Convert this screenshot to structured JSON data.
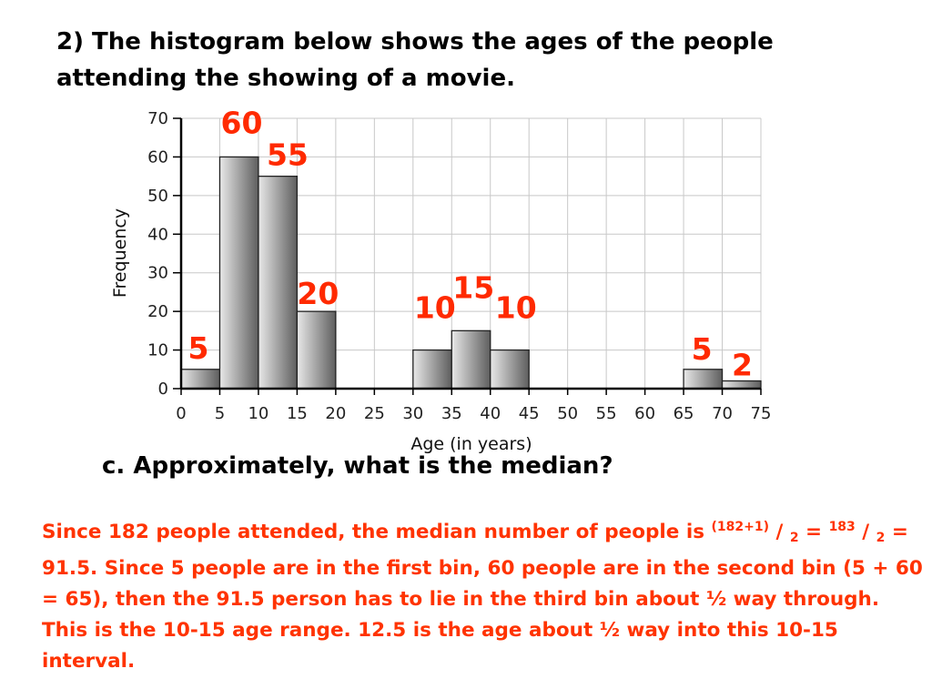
{
  "question": "2)  The histogram below shows the ages of the people attending the showing of a movie.",
  "part_c": "c.  Approximately, what is the median?",
  "answer": {
    "t1": "Since 182 people attended, the median number of people is  ",
    "sup1": "(182+1)",
    "t2": " / ",
    "sub1": "2",
    "t3": " = ",
    "sup2": "183",
    "t4": " / ",
    "sub2": "2",
    "t5": " = 91.5. Since 5 people are in the first bin, 60 people are in the second bin (5 + 60 = 65), then the 91.5 person has to lie in the third bin about ½ way through.  This is the 10-15 age range. 12.5 is the age about ½ way into this 10-15 interval."
  },
  "colors": {
    "annotation": "#ff2a00",
    "bar_fill_light": "#e8e8e8",
    "bar_fill_dark": "#5e5e5e",
    "grid": "#c8c8c8"
  },
  "chart_data": {
    "type": "bar",
    "subtype": "histogram",
    "xlabel": "Age (in years)",
    "ylabel": "Frequency",
    "xlim": [
      0,
      75
    ],
    "ylim": [
      0,
      70
    ],
    "x_ticks": [
      "0",
      "5",
      "10",
      "15",
      "20",
      "25",
      "30",
      "35",
      "40",
      "45",
      "50",
      "55",
      "60",
      "65",
      "70",
      "75"
    ],
    "y_ticks": [
      "0",
      "10",
      "20",
      "30",
      "40",
      "50",
      "60",
      "70"
    ],
    "bin_width": 5,
    "bins": [
      {
        "start": 0,
        "end": 5,
        "value": 5,
        "label": "5"
      },
      {
        "start": 5,
        "end": 10,
        "value": 60,
        "label": "60"
      },
      {
        "start": 10,
        "end": 15,
        "value": 55,
        "label": "55"
      },
      {
        "start": 15,
        "end": 20,
        "value": 20,
        "label": "20"
      },
      {
        "start": 20,
        "end": 25,
        "value": 0,
        "label": ""
      },
      {
        "start": 25,
        "end": 30,
        "value": 0,
        "label": ""
      },
      {
        "start": 30,
        "end": 35,
        "value": 10,
        "label": "10"
      },
      {
        "start": 35,
        "end": 40,
        "value": 15,
        "label": "15"
      },
      {
        "start": 40,
        "end": 45,
        "value": 10,
        "label": "10"
      },
      {
        "start": 45,
        "end": 50,
        "value": 0,
        "label": ""
      },
      {
        "start": 50,
        "end": 55,
        "value": 0,
        "label": ""
      },
      {
        "start": 55,
        "end": 60,
        "value": 0,
        "label": ""
      },
      {
        "start": 60,
        "end": 65,
        "value": 0,
        "label": ""
      },
      {
        "start": 65,
        "end": 70,
        "value": 5,
        "label": "5"
      },
      {
        "start": 70,
        "end": 75,
        "value": 2,
        "label": "2"
      }
    ],
    "grid": true,
    "legend": "none"
  }
}
